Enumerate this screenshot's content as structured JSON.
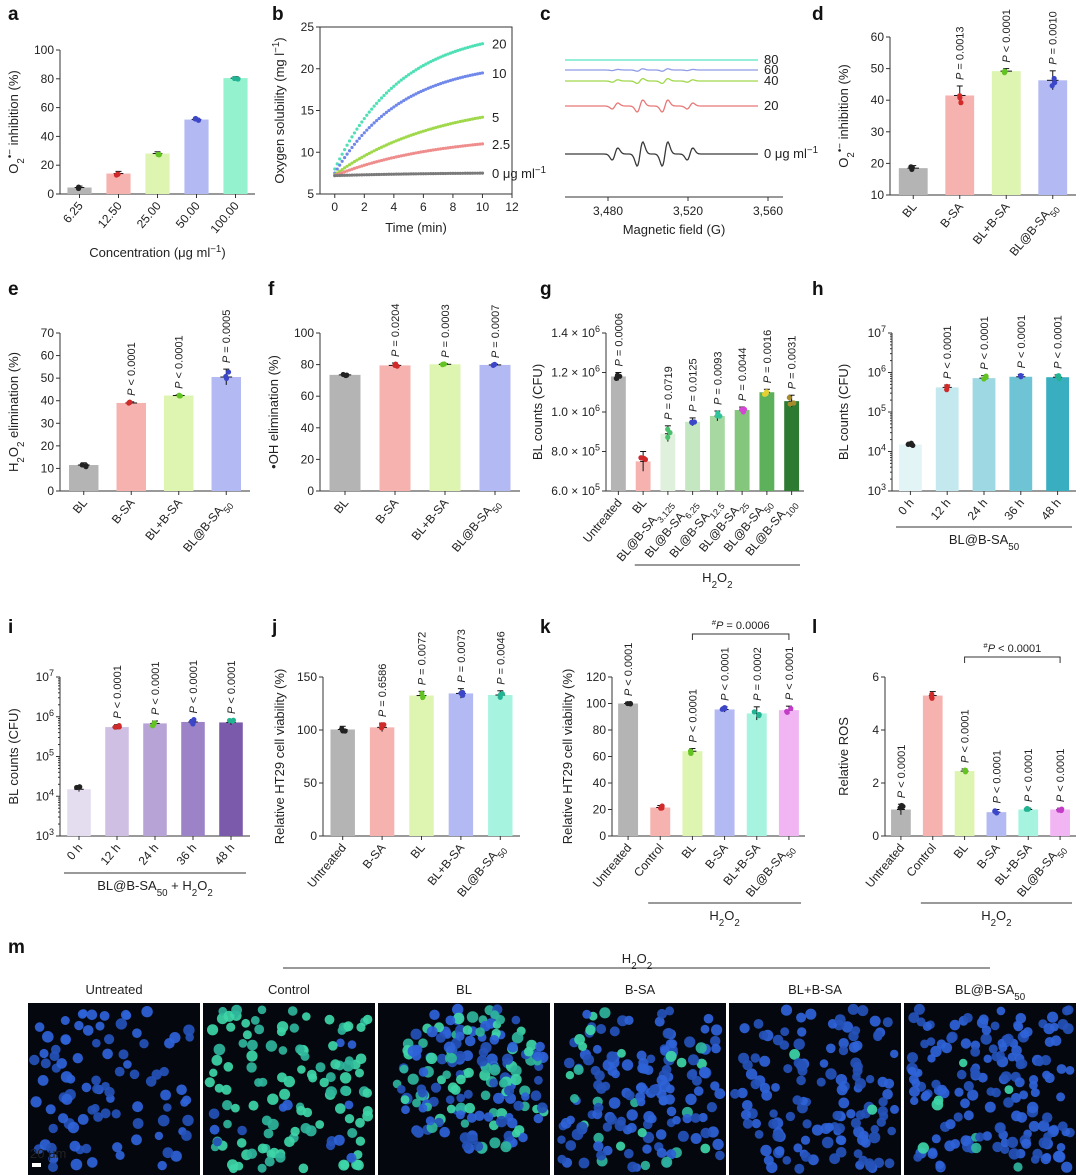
{
  "figure": {
    "panel_letters": [
      "a",
      "b",
      "c",
      "d",
      "e",
      "f",
      "g",
      "h",
      "i",
      "j",
      "k",
      "l",
      "m"
    ]
  },
  "colors": {
    "grey": "#b4b4b4",
    "red": "#f6b2ae",
    "lime": "#ddf5b0",
    "blue": "#b3b9f2",
    "teal": "#95f2cf",
    "lav1": "#e4dcef",
    "lav2": "#cfc0e3",
    "lav3": "#b7a3d6",
    "lav4": "#9c82c6",
    "purple": "#7c5aab",
    "cy1": "#e3f4f6",
    "cy2": "#c3e8ee",
    "cy3": "#9ed8e2",
    "cy4": "#6ec4d4",
    "cy5": "#3aaec1",
    "pink": "#f1b5f3",
    "mint": "#a6f3e0",
    "g1": "#dff0dd",
    "g2": "#c4e6c0",
    "g3": "#a7d8a1",
    "g4": "#83c67c",
    "g5": "#5cb15a",
    "g6": "#3e9741",
    "g7": "#2d7a33"
  },
  "chart_data": [
    {
      "panel": "a",
      "type": "bar",
      "categories": [
        "6.25",
        "12.50",
        "25.00",
        "50.00",
        "100.00"
      ],
      "values": [
        4.5,
        14.2,
        28.1,
        51.7,
        80.5
      ],
      "errors": [
        1.0,
        1.5,
        1.2,
        1.0,
        1.0
      ],
      "ylabel": "O2•− inhibition (%)",
      "xlabel": "Concentration (μg ml−1)",
      "ylim": [
        0,
        100
      ],
      "yticks": [
        0,
        20,
        40,
        60,
        80,
        100
      ],
      "bar_colors": [
        "grey",
        "red",
        "lime",
        "blue",
        "teal"
      ],
      "dot_colors": [
        "#222222",
        "#d12a2a",
        "#63c322",
        "#3b46c8",
        "#22b393"
      ]
    },
    {
      "panel": "b",
      "type": "scatter",
      "xlabel": "Time (min)",
      "ylabel": "Oxygen solubility (mg l−1)",
      "xlim": [
        -1,
        12
      ],
      "ylim": [
        5,
        25
      ],
      "xticks": [
        0,
        2,
        4,
        6,
        8,
        10,
        12
      ],
      "yticks": [
        5,
        10,
        15,
        20,
        25
      ],
      "series": [
        {
          "name": "20",
          "color": "#4fe0b5",
          "start": 8.0,
          "end": 23.0
        },
        {
          "name": "10",
          "color": "#7088ea",
          "start": 7.5,
          "end": 19.5
        },
        {
          "name": "5",
          "color": "#9fd84a",
          "start": 7.3,
          "end": 14.2
        },
        {
          "name": "2.5",
          "color": "#ef8c8c",
          "start": 7.2,
          "end": 11.0
        },
        {
          "name": "0 μg ml−1",
          "color": "#7a7a7a",
          "start": 7.2,
          "end": 7.5
        }
      ]
    },
    {
      "panel": "c",
      "type": "line",
      "xlabel": "Magnetic field (G)",
      "xticks": [
        "3,480",
        "3,520",
        "3,560"
      ],
      "series": [
        {
          "name": "80",
          "color": "#55e5c0",
          "amp": 0.0
        },
        {
          "name": "60",
          "color": "#8f9be6",
          "amp": 0.1
        },
        {
          "name": "40",
          "color": "#9fd84a",
          "amp": 0.2
        },
        {
          "name": "20",
          "color": "#e87878",
          "amp": 0.5
        },
        {
          "name": "0 μg ml−1",
          "color": "#3a3a3a",
          "amp": 1.0
        }
      ]
    },
    {
      "panel": "d",
      "type": "bar",
      "categories": [
        "BL",
        "B-SA",
        "BL+B-SA",
        "BL@B-SA50"
      ],
      "values": [
        18.5,
        41.5,
        49.2,
        46.3
      ],
      "errors": [
        0.8,
        3.0,
        0.8,
        3.0
      ],
      "pvalues": [
        "",
        "P = 0.0013",
        "P < 0.0001",
        "P = 0.0010"
      ],
      "ylabel": "O2•− inhibition (%)",
      "ylim": [
        10,
        60
      ],
      "yticks": [
        10,
        20,
        30,
        40,
        50,
        60
      ],
      "bar_colors": [
        "grey",
        "red",
        "lime",
        "blue"
      ],
      "dot_colors": [
        "#222222",
        "#d12a2a",
        "#63c322",
        "#3b46c8"
      ]
    },
    {
      "panel": "e",
      "type": "bar",
      "categories": [
        "BL",
        "B-SA",
        "BL+B-SA",
        "BL@B-SA50"
      ],
      "values": [
        11.5,
        39.0,
        42.3,
        50.5
      ],
      "errors": [
        1.0,
        0.5,
        0.3,
        3.5
      ],
      "pvalues": [
        "",
        "P < 0.0001",
        "P < 0.0001",
        "P = 0.0005"
      ],
      "ylabel": "H2O2 elimination (%)",
      "ylim": [
        0,
        70
      ],
      "yticks": [
        0,
        10,
        20,
        30,
        40,
        50,
        60,
        70
      ],
      "bar_colors": [
        "grey",
        "red",
        "lime",
        "blue"
      ],
      "dot_colors": [
        "#222222",
        "#d12a2a",
        "#63c322",
        "#3b46c8"
      ]
    },
    {
      "panel": "f",
      "type": "bar",
      "categories": [
        "BL",
        "B-SA",
        "BL+B-SA",
        "BL@B-SA50"
      ],
      "values": [
        73.5,
        79.5,
        80.2,
        79.8
      ],
      "errors": [
        0.5,
        1.5,
        0.3,
        0.5
      ],
      "pvalues": [
        "",
        "P = 0.0204",
        "P = 0.0003",
        "P = 0.0007"
      ],
      "ylabel": "•OH elimination (%)",
      "ylim": [
        0,
        100
      ],
      "yticks": [
        0,
        20,
        40,
        60,
        80,
        100
      ],
      "bar_colors": [
        "grey",
        "red",
        "lime",
        "blue"
      ],
      "dot_colors": [
        "#222222",
        "#d12a2a",
        "#63c322",
        "#3b46c8"
      ]
    },
    {
      "panel": "g",
      "type": "bar",
      "categories": [
        "Untreated",
        "BL",
        "BL@B-SA3.125",
        "BL@B-SA6.25",
        "BL@B-SA12.5",
        "BL@B-SA25",
        "BL@B-SA50",
        "BL@B-SA100"
      ],
      "values": [
        1180000,
        750000,
        890000,
        950000,
        980000,
        1010000,
        1100000,
        1055000
      ],
      "errors": [
        20000,
        50000,
        40000,
        20000,
        25000,
        15000,
        15000,
        30000
      ],
      "pvalues": [
        "P = 0.0006",
        "",
        "P = 0.0719",
        "P = 0.0125",
        "P = 0.0093",
        "P = 0.0044",
        "P = 0.0016",
        "P = 0.0031"
      ],
      "ylabel": "BL counts (CFU)",
      "ylim": [
        600000,
        1400000
      ],
      "yticks": [
        "6.0 × 10^5",
        "8.0 × 10^5",
        "1.0 × 10^6",
        "1.2 × 10^6",
        "1.4 × 10^6"
      ],
      "group_label": "H2O2",
      "bar_colors": [
        "grey",
        "red",
        "g1",
        "g2",
        "g3",
        "g4",
        "g5",
        "g7"
      ],
      "dot_colors": [
        "#222222",
        "#d12a2a",
        "#48c06e",
        "#3b46c8",
        "#2fc49b",
        "#d447d4",
        "#e6cf34",
        "#a88b2b"
      ]
    },
    {
      "panel": "h",
      "type": "bar",
      "log": true,
      "categories": [
        "0 h",
        "12 h",
        "24 h",
        "36 h",
        "48 h"
      ],
      "values": [
        15000,
        420000,
        720000,
        780000,
        760000
      ],
      "pvalues": [
        "",
        "P < 0.0001",
        "P < 0.0001",
        "P < 0.0001",
        "P < 0.0001"
      ],
      "ylabel": "BL counts (CFU)",
      "ylim": [
        1000,
        10000000
      ],
      "group_label": "BL@B-SA50",
      "bar_colors": [
        "cy1",
        "cy2",
        "cy3",
        "cy4",
        "cy5"
      ],
      "dot_colors": [
        "#222222",
        "#d12a2a",
        "#63c322",
        "#3b46c8",
        "#22b393"
      ]
    },
    {
      "panel": "i",
      "type": "bar",
      "log": true,
      "categories": [
        "0 h",
        "12 h",
        "24 h",
        "36 h",
        "48 h"
      ],
      "values": [
        15000,
        550000,
        680000,
        740000,
        720000
      ],
      "pvalues": [
        "",
        "P < 0.0001",
        "P < 0.0001",
        "P < 0.0001",
        "P < 0.0001"
      ],
      "ylabel": "BL counts (CFU)",
      "ylim": [
        1000,
        10000000
      ],
      "group_label": "BL@B-SA50 + H2O2",
      "bar_colors": [
        "lav1",
        "lav2",
        "lav3",
        "lav4",
        "purple"
      ],
      "dot_colors": [
        "#222222",
        "#d12a2a",
        "#63c322",
        "#3b46c8",
        "#22b393"
      ]
    },
    {
      "panel": "j",
      "type": "bar",
      "categories": [
        "Untreated",
        "B-SA",
        "BL",
        "BL+B-SA",
        "BL@B-SA50"
      ],
      "values": [
        100.5,
        102.5,
        132.5,
        134.5,
        133.0
      ],
      "errors": [
        3.0,
        4.0,
        4.0,
        4.5,
        4.0
      ],
      "pvalues": [
        "",
        "P = 0.6586",
        "P = 0.0072",
        "P = 0.0073",
        "P = 0.0046"
      ],
      "ylabel": "Relative HT29 cell viability (%)",
      "ylim": [
        0,
        150
      ],
      "yticks": [
        0,
        50,
        100,
        150
      ],
      "bar_colors": [
        "grey",
        "red",
        "lime",
        "blue",
        "mint"
      ],
      "dot_colors": [
        "#222222",
        "#d12a2a",
        "#63c322",
        "#3b46c8",
        "#22b393"
      ]
    },
    {
      "panel": "k",
      "type": "bar",
      "categories": [
        "Untreated",
        "Control",
        "BL",
        "B-SA",
        "BL+B-SA",
        "BL@B-SA50"
      ],
      "values": [
        100.0,
        21.5,
        64.0,
        95.5,
        92.5,
        95.0
      ],
      "errors": [
        1.0,
        1.5,
        2.0,
        2.0,
        5.0,
        3.0
      ],
      "pvalues": [
        "P < 0.0001",
        "",
        "P < 0.0001",
        "P < 0.0001",
        "P = 0.0002",
        "P < 0.0001"
      ],
      "bracket_label": "#P = 0.0006",
      "group_label": "H2O2",
      "ylabel": "Relative HT29 cell viability (%)",
      "ylim": [
        0,
        120
      ],
      "yticks": [
        0,
        20,
        40,
        60,
        80,
        100,
        120
      ],
      "bar_colors": [
        "grey",
        "red",
        "lime",
        "blue",
        "mint",
        "pink"
      ],
      "dot_colors": [
        "#222222",
        "#d12a2a",
        "#63c322",
        "#3b46c8",
        "#22b393",
        "#c23cc8"
      ]
    },
    {
      "panel": "l",
      "type": "bar",
      "categories": [
        "Untreated",
        "Control",
        "BL",
        "B-SA",
        "BL+B-SA",
        "BL@B-SA50"
      ],
      "values": [
        1.0,
        5.3,
        2.45,
        0.9,
        1.0,
        1.0
      ],
      "errors": [
        0.2,
        0.15,
        0.08,
        0.1,
        0.05,
        0.05
      ],
      "pvalues": [
        "P < 0.0001",
        "",
        "P < 0.0001",
        "P < 0.0001",
        "P < 0.0001",
        "P < 0.0001"
      ],
      "bracket_label": "#P < 0.0001",
      "group_label": "H2O2",
      "ylabel": "Relative ROS",
      "ylim": [
        0,
        6
      ],
      "yticks": [
        0,
        2,
        4,
        6
      ],
      "bar_colors": [
        "grey",
        "red",
        "lime",
        "blue",
        "mint",
        "pink"
      ],
      "dot_colors": [
        "#222222",
        "#d12a2a",
        "#63c322",
        "#3b46c8",
        "#22b393",
        "#c23cc8"
      ]
    }
  ],
  "microscopy": {
    "group_label": "H2O2",
    "panels": [
      {
        "label": "Untreated",
        "density": 0.35,
        "green": 0.0
      },
      {
        "label": "Control",
        "density": 0.6,
        "green": 0.9
      },
      {
        "label": "BL",
        "density": 1.0,
        "green": 0.45
      },
      {
        "label": "B-SA",
        "density": 0.8,
        "green": 0.1
      },
      {
        "label": "BL+B-SA",
        "density": 0.65,
        "green": 0.05
      },
      {
        "label": "BL@B-SA50",
        "density": 0.85,
        "green": 0.05
      }
    ],
    "scale_bar": "20 μm"
  }
}
